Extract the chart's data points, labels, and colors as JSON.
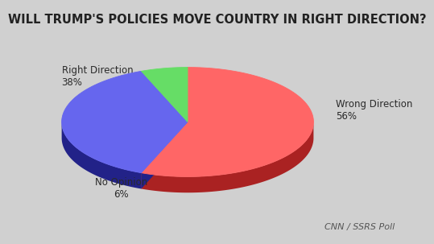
{
  "title": "WILL TRUMP'S POLICIES MOVE COUNTRY IN RIGHT DIRECTION?",
  "slices": [
    56,
    38,
    6
  ],
  "labels": [
    "Wrong Direction\n56%",
    "Right Direction\n38%",
    "No Opinion\n6%"
  ],
  "colors": [
    "#FF6666",
    "#6666EE",
    "#66DD66"
  ],
  "shadow_colors": [
    "#AA2222",
    "#222288",
    "#226622"
  ],
  "background_color": "#D0D0D0",
  "source_text": "CNN / SSRS Poll",
  "title_fontsize": 10.5,
  "label_fontsize": 8.5,
  "source_fontsize": 8
}
